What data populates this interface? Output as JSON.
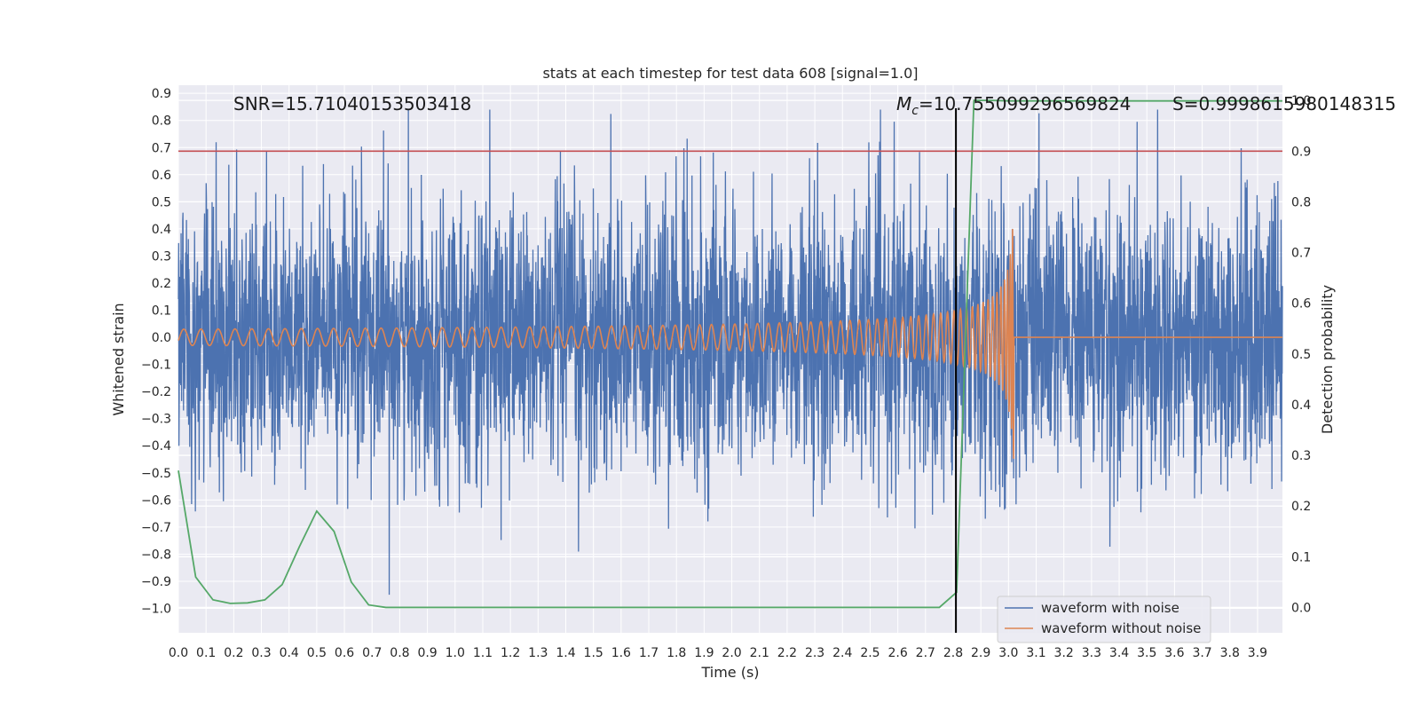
{
  "chart_data": {
    "type": "line",
    "title": "stats at each timestep for test data 608 [signal=1.0]",
    "xlabel": "Time (s)",
    "ylabel": "Whitened strain",
    "y2label": "Detection probability",
    "xlim": [
      0.0,
      3.99
    ],
    "ylim": [
      -1.09,
      0.93
    ],
    "y2lim": [
      -0.05,
      1.03
    ],
    "xticks": [
      "0.0",
      "0.1",
      "0.2",
      "0.3",
      "0.4",
      "0.5",
      "0.6",
      "0.7",
      "0.8",
      "0.9",
      "1.0",
      "1.1",
      "1.2",
      "1.3",
      "1.4",
      "1.5",
      "1.6",
      "1.7",
      "1.8",
      "1.9",
      "2.0",
      "2.1",
      "2.2",
      "2.3",
      "2.4",
      "2.5",
      "2.6",
      "2.7",
      "2.8",
      "2.9",
      "3.0",
      "3.1",
      "3.2",
      "3.3",
      "3.4",
      "3.5",
      "3.6",
      "3.7",
      "3.8",
      "3.9"
    ],
    "yticks": [
      "0.9",
      "0.8",
      "0.7",
      "0.6",
      "0.5",
      "0.4",
      "0.3",
      "0.2",
      "0.1",
      "0.0",
      "−0.1",
      "−0.2",
      "−0.3",
      "−0.4",
      "−0.5",
      "−0.6",
      "−0.7",
      "−0.8",
      "−0.9",
      "−1.0"
    ],
    "y2ticks": [
      "1.0",
      "0.9",
      "0.8",
      "0.7",
      "0.6",
      "0.5",
      "0.4",
      "0.3",
      "0.2",
      "0.1",
      "0.0"
    ],
    "annotations": {
      "snr": "SNR=15.71040153503418",
      "mc_symbol": "M",
      "mc_sub": "c",
      "mc_value": "=10.755099296569824",
      "s": "S=0.9998615980148315"
    },
    "series": [
      {
        "name": "waveform with noise",
        "color": "#4c72b0",
        "axis": "left",
        "kind": "noise",
        "amplitude_approx": 0.25,
        "y_min": -1.0,
        "y_max": 0.84
      },
      {
        "name": "waveform without noise",
        "color": "#dd8452",
        "axis": "left",
        "kind": "chirp",
        "t_start": 0.0,
        "t_merge": 3.02,
        "peak_amplitude": 0.5,
        "start_amplitude": 0.03,
        "start_frequency_hz": 20
      },
      {
        "name": "detection probability",
        "color": "#55a868",
        "axis": "right",
        "x": [
          0.0,
          0.0625,
          0.125,
          0.1875,
          0.25,
          0.3125,
          0.375,
          0.4375,
          0.5,
          0.5625,
          0.625,
          0.6875,
          0.75,
          0.8125,
          2.75,
          2.8125,
          2.875,
          2.9375,
          3.0,
          3.0625,
          3.5,
          3.99
        ],
        "values": [
          0.27,
          0.06,
          0.015,
          0.008,
          0.009,
          0.015,
          0.045,
          0.12,
          0.19,
          0.15,
          0.05,
          0.005,
          0.0,
          0.0,
          0.0,
          0.03,
          1.0,
          1.0,
          0.999,
          0.999,
          0.999,
          0.999
        ]
      }
    ],
    "threshold": {
      "value": 0.9,
      "axis": "right",
      "color": "#c44e52"
    },
    "marker_time": 2.81,
    "legend": {
      "position": "lower-right",
      "entries": [
        {
          "label": "waveform with noise",
          "color": "#4c72b0"
        },
        {
          "label": "waveform without noise",
          "color": "#dd8452"
        }
      ]
    }
  }
}
